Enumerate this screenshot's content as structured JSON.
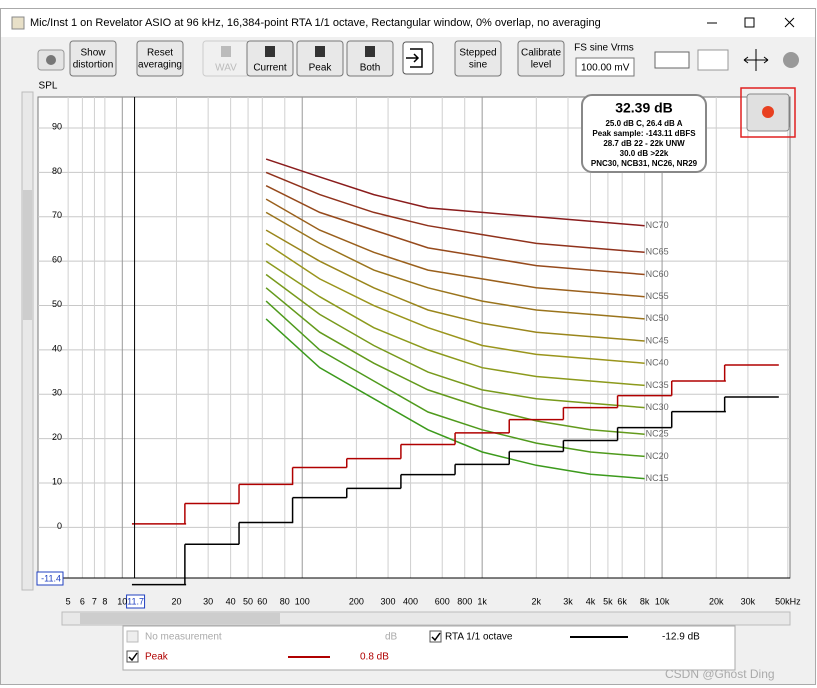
{
  "window": {
    "title": "Mic/Inst 1 on Revelator ASIO at 96 kHz, 16,384-point RTA 1/1 octave, Rectangular window, 0% overlap, no averaging"
  },
  "toolbar": {
    "buttons": [
      {
        "label": [
          "Show",
          "distortion"
        ],
        "enabled": true
      },
      {
        "label": [
          "Reset",
          "averaging"
        ],
        "enabled": true
      },
      {
        "label": [
          "WAV"
        ],
        "enabled": false
      },
      {
        "label": [
          "Current"
        ],
        "enabled": true
      },
      {
        "label": [
          "Peak"
        ],
        "enabled": true
      },
      {
        "label": [
          "Both"
        ],
        "enabled": true
      },
      {
        "label": [
          "Stepped",
          "sine"
        ],
        "enabled": true
      },
      {
        "label": [
          "Calibrate",
          "level"
        ],
        "enabled": true
      }
    ],
    "fs_label": "FS sine Vrms",
    "fs_value": "100.00 mV"
  },
  "chart_data": {
    "type": "line",
    "y_axis_label": "SPL",
    "log_x": true,
    "grid": true,
    "xlim": [
      3.4,
      51400
    ],
    "ylim": [
      -11.4,
      97
    ],
    "xticks": [
      5,
      6,
      7,
      8,
      10,
      20,
      30,
      40,
      50,
      60,
      80,
      100,
      200,
      300,
      400,
      600,
      800,
      {
        "value": 1000,
        "label": "1k"
      },
      {
        "value": 2000,
        "label": "2k"
      },
      {
        "value": 3000,
        "label": "3k"
      },
      {
        "value": 4000,
        "label": "4k"
      },
      {
        "value": 5000,
        "label": "5k"
      },
      {
        "value": 6000,
        "label": "6k"
      },
      {
        "value": 8000,
        "label": "8k"
      },
      {
        "value": 10000,
        "label": "10k"
      },
      {
        "value": 20000,
        "label": "20k"
      },
      {
        "value": 30000,
        "label": "30k"
      },
      {
        "value": 50000,
        "label": "50kHz"
      }
    ],
    "yticks": [
      0,
      10,
      20,
      30,
      40,
      50,
      60,
      70,
      80,
      90
    ],
    "series": [
      {
        "name": "RTA 1/1 octave",
        "color": "#000000",
        "style": "step",
        "readout": "-12.9 dB",
        "x": [
          16,
          31.5,
          63,
          125,
          250,
          500,
          1000,
          2000,
          4000,
          8000,
          16000,
          31500
        ],
        "values": [
          -12.9,
          -3.8,
          1.1,
          6.7,
          8.8,
          11.9,
          14.2,
          17.1,
          19.6,
          22.5,
          26.1,
          29.4
        ]
      },
      {
        "name": "Peak",
        "color": "#b00000",
        "style": "step",
        "readout": "0.8 dB",
        "x": [
          16,
          31.5,
          63,
          125,
          250,
          500,
          1000,
          2000,
          4000,
          8000,
          16000,
          31500
        ],
        "values": [
          0.8,
          5.4,
          9.7,
          13.5,
          15.5,
          18.7,
          21.3,
          24.3,
          27.0,
          29.7,
          33.0,
          36.6
        ]
      }
    ],
    "nc_curves": {
      "x": [
        63,
        125,
        250,
        500,
        1000,
        2000,
        4000,
        8000
      ],
      "series": [
        {
          "name": "NC15",
          "color": "#3c9a1c",
          "values": [
            47,
            36,
            29,
            22,
            17,
            14,
            12,
            11
          ]
        },
        {
          "name": "NC20",
          "color": "#4f9a1c",
          "values": [
            51,
            40,
            33,
            26,
            22,
            19,
            17,
            16
          ]
        },
        {
          "name": "NC25",
          "color": "#639a1c",
          "values": [
            54,
            44,
            37,
            31,
            27,
            24,
            22,
            21
          ]
        },
        {
          "name": "NC30",
          "color": "#789a1c",
          "values": [
            57,
            48,
            41,
            35,
            31,
            29,
            28,
            27
          ]
        },
        {
          "name": "NC35",
          "color": "#8c9a1c",
          "values": [
            60,
            52,
            45,
            40,
            36,
            34,
            33,
            32
          ]
        },
        {
          "name": "NC40",
          "color": "#9a951c",
          "values": [
            64,
            56,
            50,
            45,
            41,
            39,
            38,
            37
          ]
        },
        {
          "name": "NC45",
          "color": "#9a861c",
          "values": [
            67,
            60,
            54,
            49,
            46,
            44,
            43,
            42
          ]
        },
        {
          "name": "NC50",
          "color": "#9a741c",
          "values": [
            71,
            64,
            58,
            54,
            51,
            49,
            48,
            47
          ]
        },
        {
          "name": "NC55",
          "color": "#9a601c",
          "values": [
            74,
            67,
            62,
            58,
            56,
            54,
            53,
            52
          ]
        },
        {
          "name": "NC60",
          "color": "#964a1c",
          "values": [
            77,
            71,
            67,
            63,
            61,
            59,
            58,
            57
          ]
        },
        {
          "name": "NC65",
          "color": "#90321c",
          "values": [
            80,
            75,
            71,
            68,
            66,
            64,
            63,
            62
          ]
        },
        {
          "name": "NC70",
          "color": "#8a1c1c",
          "values": [
            83,
            79,
            75,
            72,
            71,
            70,
            69,
            68
          ]
        }
      ]
    },
    "cursor": {
      "x": 11.7,
      "y": -11.4
    },
    "info_box": {
      "headline": "32.39 dB",
      "lines": [
        "25.0 dB C, 26.4 dB A",
        "Peak sample: -143.11 dBFS",
        "28.7 dB 22 - 22k UNW",
        "30.0 dB >22k",
        "PNC30, NCB31, NC26, NR29"
      ]
    }
  },
  "legend": {
    "inactive": {
      "name": "No measurement",
      "readout": "dB"
    }
  },
  "watermark": "CSDN @Ghost Ding"
}
